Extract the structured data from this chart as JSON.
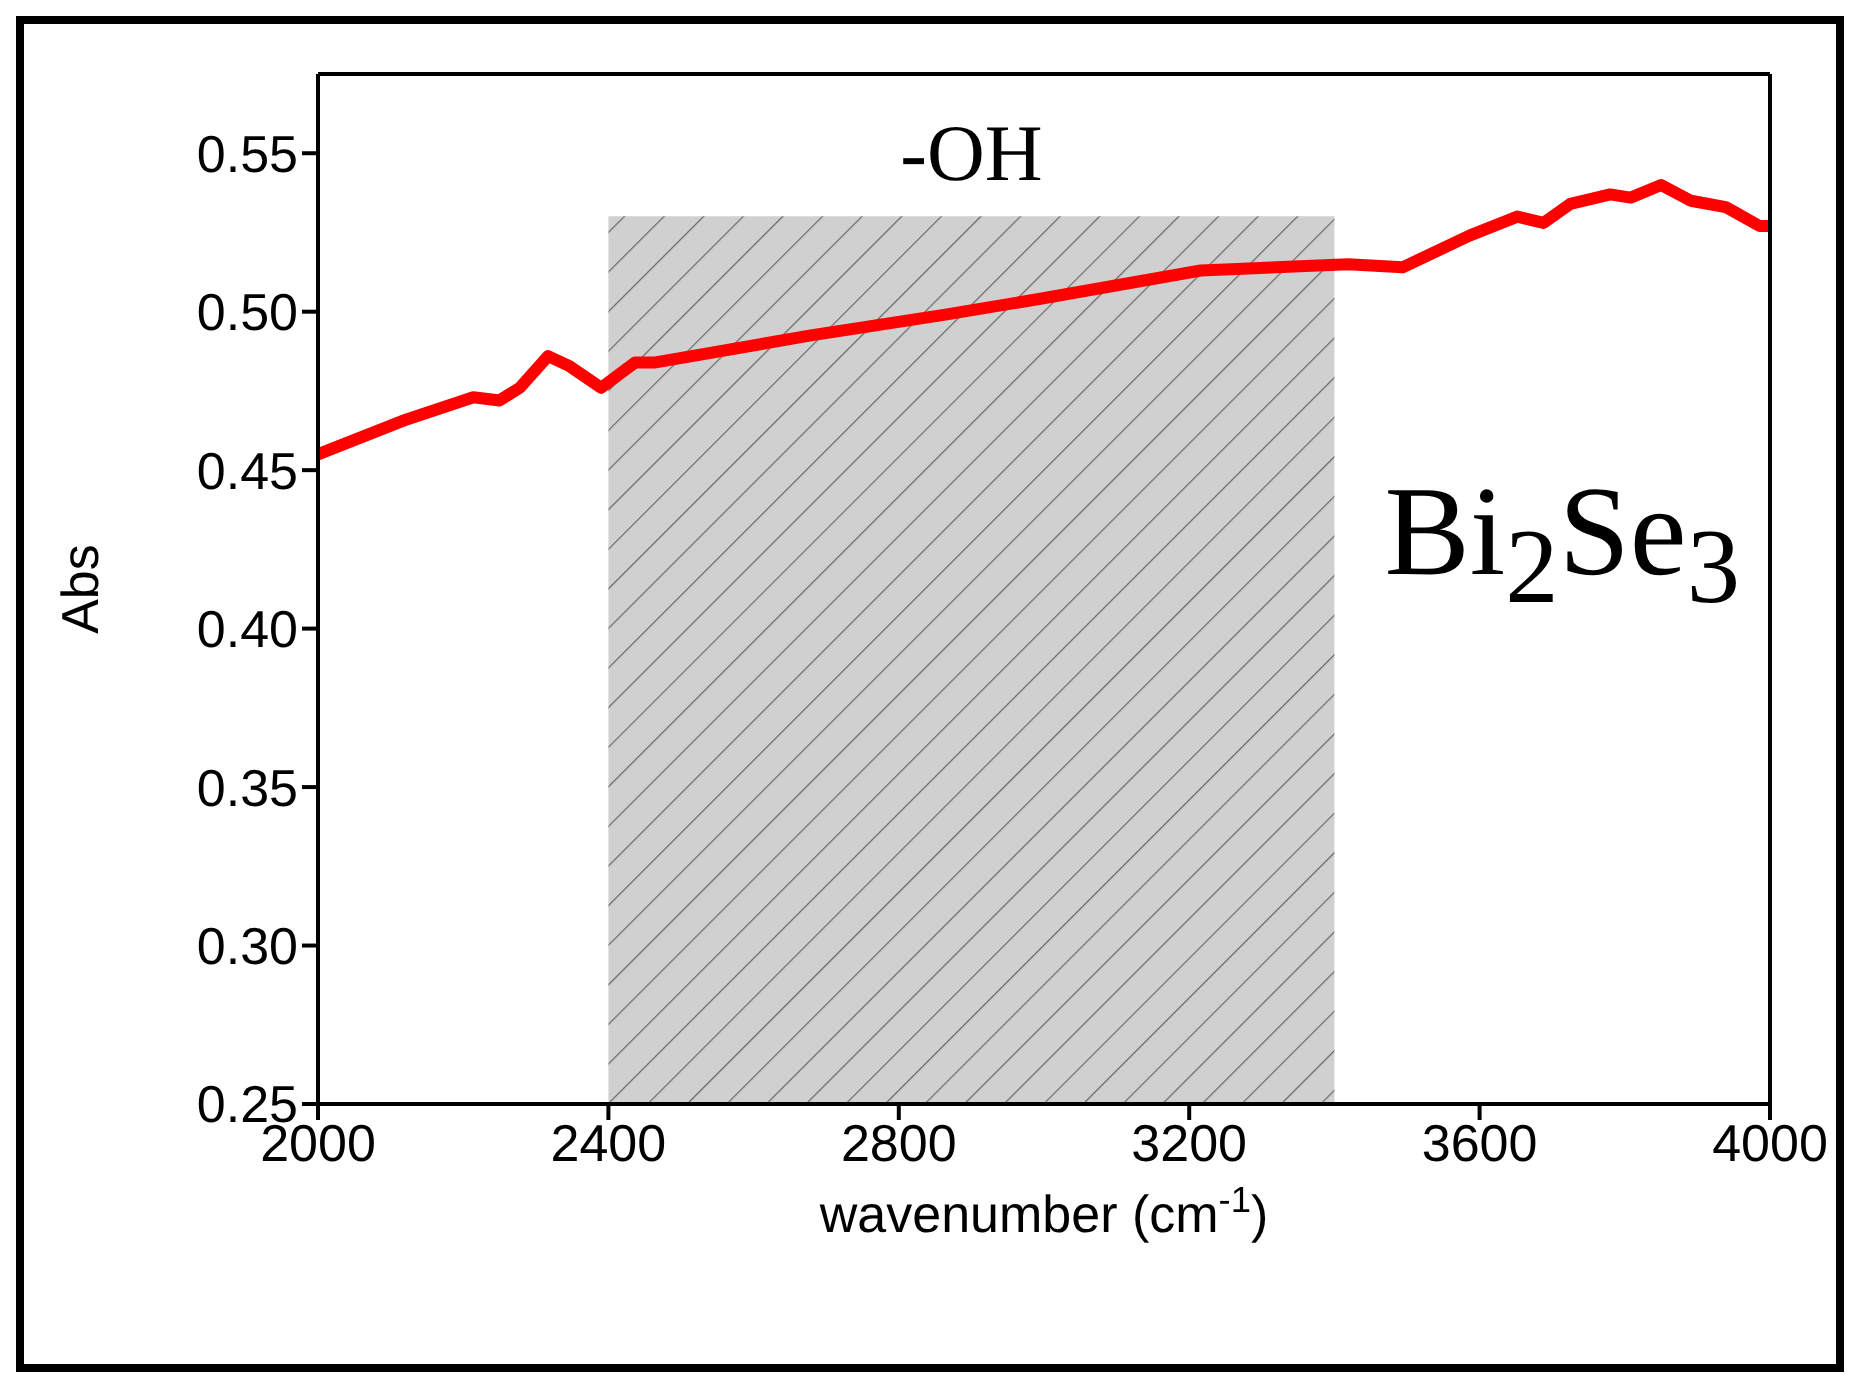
{
  "chart_data": {
    "type": "line",
    "xlabel": "wavenumber (cm$^{-1}$)",
    "ylabel": "Abs",
    "x": [
      2000,
      2122,
      2214,
      2250,
      2278,
      2317,
      2345,
      2390,
      2437,
      2465,
      2679,
      2862,
      2993,
      3216,
      3419,
      3494,
      3586,
      3652,
      3688,
      3725,
      3780,
      3808,
      3850,
      3891,
      3939,
      3986,
      4000
    ],
    "series": [
      {
        "color": "#ff0000",
        "values": [
          0.455,
          0.466,
          0.473,
          0.472,
          0.476,
          0.486,
          0.483,
          0.476,
          0.484,
          0.484,
          0.4925,
          0.499,
          0.504,
          0.513,
          0.515,
          0.514,
          0.524,
          0.53,
          0.528,
          0.534,
          0.537,
          0.536,
          0.54,
          0.535,
          0.533,
          0.527,
          0.527
        ]
      }
    ],
    "xlim": [
      2000,
      4000
    ],
    "xticks": [
      2000,
      2400,
      2800,
      3200,
      3600,
      4000
    ],
    "ylim": [
      0.25,
      0.575
    ],
    "yticks": [
      {
        "value": 0.25,
        "label": "0.25"
      },
      {
        "value": 0.3,
        "label": "0.30"
      },
      {
        "value": 0.35,
        "label": "0.35"
      },
      {
        "value": 0.4,
        "label": "0.40"
      },
      {
        "value": 0.45,
        "label": "0.45"
      },
      {
        "value": 0.5,
        "label": "0.50"
      },
      {
        "value": 0.55,
        "label": "0.55"
      }
    ],
    "bands": [
      {
        "axis": "x",
        "from": 2400,
        "to": 3400,
        "label": "-OH",
        "color": "#d0d0d0"
      }
    ],
    "annotations": [
      "Bi$_{2}$Se$_{3}$"
    ],
    "marker": "none",
    "line_style": "solid"
  }
}
